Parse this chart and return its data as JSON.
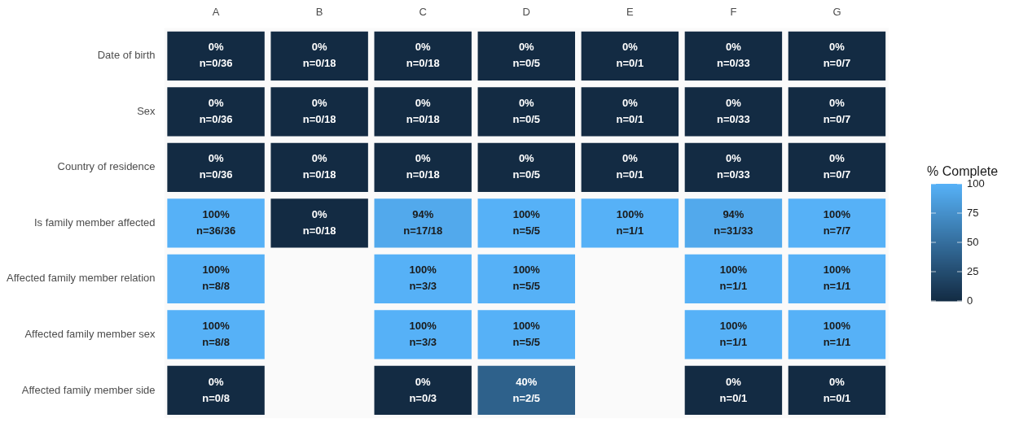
{
  "chart_data": {
    "type": "heatmap",
    "clabel": "% Complete",
    "categories": [
      "A",
      "B",
      "C",
      "D",
      "E",
      "F",
      "G"
    ],
    "y_categories": [
      "Date of birth",
      "Sex",
      "Country of residence",
      "Is family member affected",
      "Affected family member relation",
      "Affected family member sex",
      "Affected family member side"
    ],
    "cells": [
      [
        0,
        0,
        0,
        0,
        0,
        0,
        0
      ],
      [
        0,
        0,
        0,
        0,
        0,
        0,
        0
      ],
      [
        0,
        0,
        0,
        0,
        0,
        0,
        0
      ],
      [
        100,
        0,
        94,
        100,
        100,
        94,
        100
      ],
      [
        100,
        null,
        100,
        100,
        null,
        100,
        100
      ],
      [
        100,
        null,
        100,
        100,
        null,
        100,
        100
      ],
      [
        0,
        null,
        0,
        40,
        null,
        0,
        0
      ]
    ],
    "cell_labels": [
      [
        "0%\nn=0/36",
        "0%\nn=0/18",
        "0%\nn=0/18",
        "0%\nn=0/5",
        "0%\nn=0/1",
        "0%\nn=0/33",
        "0%\nn=0/7"
      ],
      [
        "0%\nn=0/36",
        "0%\nn=0/18",
        "0%\nn=0/18",
        "0%\nn=0/5",
        "0%\nn=0/1",
        "0%\nn=0/33",
        "0%\nn=0/7"
      ],
      [
        "0%\nn=0/36",
        "0%\nn=0/18",
        "0%\nn=0/18",
        "0%\nn=0/5",
        "0%\nn=0/1",
        "0%\nn=0/33",
        "0%\nn=0/7"
      ],
      [
        "100%\nn=36/36",
        "0%\nn=0/18",
        "94%\nn=17/18",
        "100%\nn=5/5",
        "100%\nn=1/1",
        "94%\nn=31/33",
        "100%\nn=7/7"
      ],
      [
        "100%\nn=8/8",
        null,
        "100%\nn=3/3",
        "100%\nn=5/5",
        null,
        "100%\nn=1/1",
        "100%\nn=1/1"
      ],
      [
        "100%\nn=8/8",
        null,
        "100%\nn=3/3",
        "100%\nn=5/5",
        null,
        "100%\nn=1/1",
        "100%\nn=1/1"
      ],
      [
        "0%\nn=0/8",
        null,
        "0%\nn=0/3",
        "40%\nn=2/5",
        null,
        "0%\nn=0/1",
        "0%\nn=0/1"
      ]
    ],
    "clim": [
      0,
      100
    ],
    "cticks": [
      0,
      25,
      50,
      75,
      100
    ]
  }
}
